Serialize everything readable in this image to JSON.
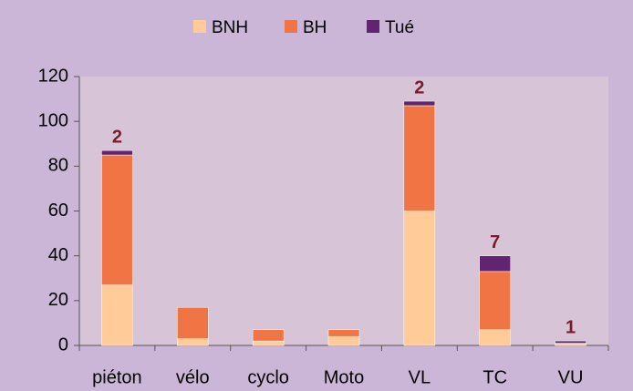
{
  "chart_data": {
    "type": "bar",
    "stacked": true,
    "categories": [
      "piéton",
      "vélo",
      "cyclo",
      "Moto",
      "VL",
      "TC",
      "VU"
    ],
    "series": [
      {
        "name": "BNH",
        "color": "#ffcc99",
        "values": [
          27,
          3,
          2,
          4,
          60,
          7,
          1
        ]
      },
      {
        "name": "BH",
        "color": "#f07444",
        "values": [
          58,
          14,
          5,
          3,
          47,
          26,
          0
        ]
      },
      {
        "name": "Tué",
        "color": "#612470",
        "values": [
          2,
          0,
          0,
          0,
          2,
          7,
          1
        ]
      }
    ],
    "labeled_series": 2,
    "ylim": [
      0,
      120
    ],
    "yticks": [
      0,
      20,
      40,
      60,
      80,
      100,
      120
    ],
    "grid": false,
    "legend": "top"
  }
}
